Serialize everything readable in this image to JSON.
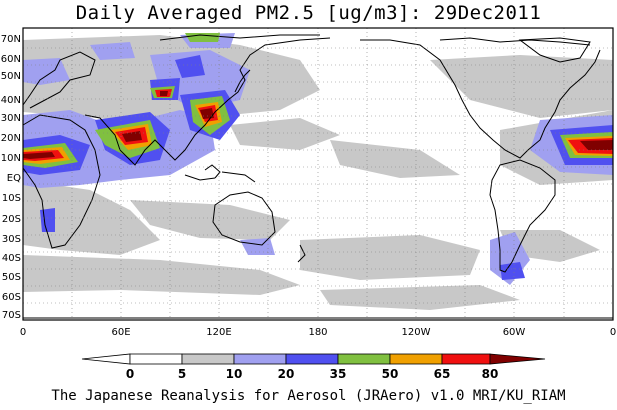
{
  "title": "Daily Averaged PM2.5 [ug/m3]: 29Dec2011",
  "footer": "The Japanese Reanalysis for Aerosol (JRAero) v1.0 MRI/KU_RIAM",
  "map": {
    "lat_labels": [
      "70N",
      "60N",
      "50N",
      "40N",
      "30N",
      "20N",
      "10N",
      "EQ",
      "10S",
      "20S",
      "30S",
      "40S",
      "50S",
      "60S",
      "70S"
    ],
    "lon_labels": [
      "0",
      "60E",
      "120E",
      "180",
      "120W",
      "60W",
      "0"
    ],
    "grid": "dotted",
    "background_color": "#ffffff",
    "coastline_color": "#000000"
  },
  "colorbar": {
    "labels": [
      "0",
      "5",
      "10",
      "20",
      "35",
      "50",
      "65",
      "80"
    ],
    "colors": [
      "#ffffff",
      "#c8c8c8",
      "#a0a0f0",
      "#5050f0",
      "#80c040",
      "#f0a000",
      "#f01010",
      "#800000"
    ]
  }
}
